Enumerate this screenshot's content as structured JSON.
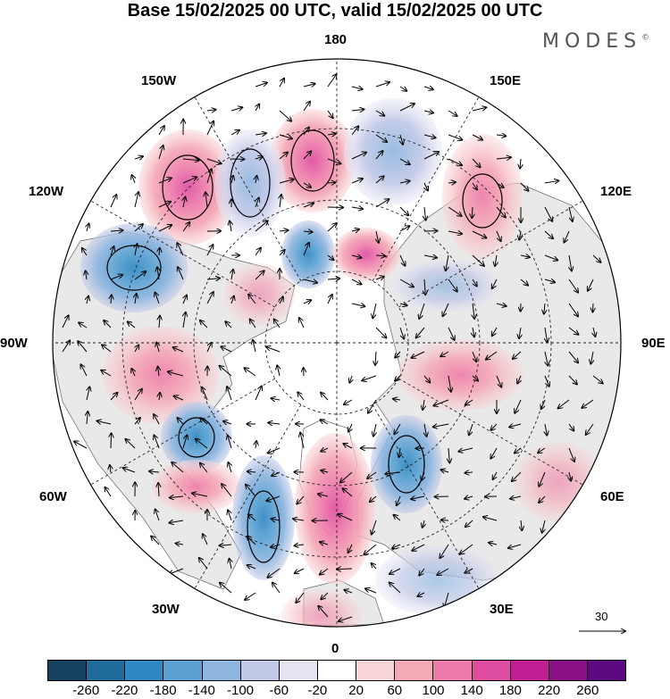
{
  "title": "Base 15/02/2025 00 UTC, valid 15/02/2025 00 UTC",
  "brand": "MODES",
  "brand_mark": "©",
  "longitude_labels": {
    "lon_180": "180",
    "lon_150e": "150E",
    "lon_120e": "120E",
    "lon_90e": "90E",
    "lon_60e": "60E",
    "lon_30e": "30E",
    "lon_0": "0",
    "lon_30w": "30W",
    "lon_60w": "60W",
    "lon_90w": "90W",
    "lon_120w": "120W",
    "lon_150w": "150W"
  },
  "vector_scale_label": "30",
  "colorbar": {
    "ticks": [
      "-260",
      "-220",
      "-180",
      "-140",
      "-100",
      "-60",
      "-20",
      "20",
      "60",
      "100",
      "140",
      "180",
      "220",
      "260"
    ],
    "colors": [
      "#17425f",
      "#1f6b9a",
      "#2f88c2",
      "#5aa1d2",
      "#8fb6df",
      "#c2c9e7",
      "#e6e4f2",
      "#ffffff",
      "#f9d5d7",
      "#f4aab6",
      "#ee7cab",
      "#df4da0",
      "#bf1f93",
      "#8b0f86",
      "#5c0a7f"
    ]
  },
  "map": {
    "land_fill": "#e9e9e9",
    "center": "North Pole",
    "anomalies": [
      {
        "region": "north pacific 150W",
        "sign": "+",
        "strength": "strong"
      },
      {
        "region": "near 180",
        "sign": "+",
        "strength": "strong"
      },
      {
        "region": "alaska",
        "sign": "-",
        "strength": "moderate"
      },
      {
        "region": "north pacific 170E",
        "sign": "-",
        "strength": "moderate"
      },
      {
        "region": "east siberia 130E",
        "sign": "+",
        "strength": "strong"
      },
      {
        "region": "canada 110W",
        "sign": "-",
        "strength": "strong"
      },
      {
        "region": "hudson bay 90W",
        "sign": "+",
        "strength": "strong"
      },
      {
        "region": "north atlantic 50W",
        "sign": "-",
        "strength": "strong"
      },
      {
        "region": "central atlantic 25W",
        "sign": "-",
        "strength": "strong"
      },
      {
        "region": "uk/iceland 0",
        "sign": "+",
        "strength": "strong"
      },
      {
        "region": "scandinavia 25E",
        "sign": "-",
        "strength": "strong"
      },
      {
        "region": "siberia 85E",
        "sign": "+",
        "strength": "moderate"
      }
    ]
  }
}
